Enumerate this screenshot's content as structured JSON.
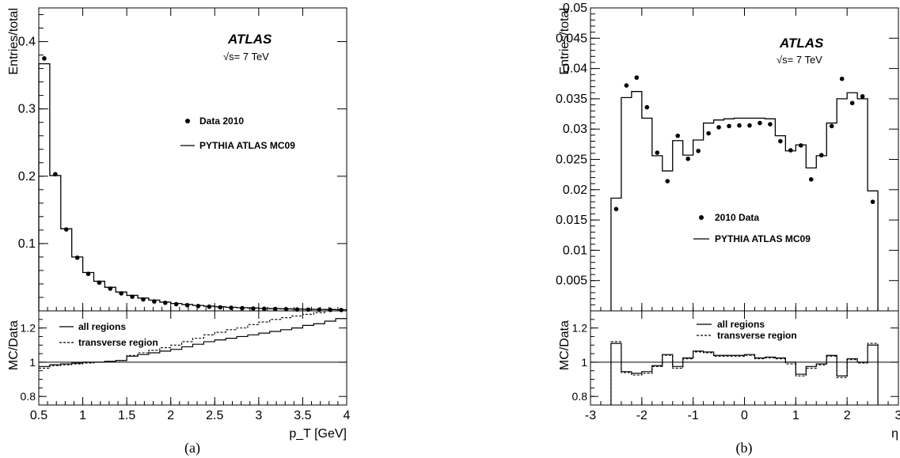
{
  "chart_data": [
    {
      "id": "a",
      "type": "line",
      "caption": "(a)",
      "atlas_label": "ATLAS",
      "energy_label": "√s= 7 TeV",
      "xlabel": "p_T [GeV]",
      "xlim": [
        0.5,
        4.0
      ],
      "x_ticks": [
        0.5,
        1,
        1.5,
        2,
        2.5,
        3,
        3.5,
        4
      ],
      "x_tick_labels": [
        "0.5",
        "1",
        "1.5",
        "2",
        "2.5",
        "3",
        "3.5",
        "4"
      ],
      "main": {
        "ylabel": "Entries/total",
        "ylim": [
          0,
          0.45
        ],
        "y_ticks": [
          0.1,
          0.2,
          0.3,
          0.4
        ],
        "y_tick_labels": [
          "0.1",
          "0.2",
          "0.3",
          "0.4"
        ],
        "legend_position": "center-right",
        "bin_edges": [
          0.5,
          0.625,
          0.75,
          0.875,
          1.0,
          1.125,
          1.25,
          1.375,
          1.5,
          1.625,
          1.75,
          1.875,
          2.0,
          2.125,
          2.25,
          2.375,
          2.5,
          2.625,
          2.75,
          2.875,
          3.0,
          3.125,
          3.25,
          3.375,
          3.5,
          3.625,
          3.75,
          3.875,
          4.0
        ],
        "series": [
          {
            "name": "Data 2010",
            "style": "points",
            "x": [
              0.5625,
              0.6875,
              0.8125,
              0.9375,
              1.0625,
              1.1875,
              1.3125,
              1.4375,
              1.5625,
              1.6875,
              1.8125,
              1.9375,
              2.0625,
              2.1875,
              2.3125,
              2.4375,
              2.5625,
              2.6875,
              2.8125,
              2.9375,
              3.0625,
              3.1875,
              3.3125,
              3.4375,
              3.5625,
              3.6875,
              3.8125,
              3.9375
            ],
            "y": [
              0.375,
              0.203,
              0.121,
              0.079,
              0.055,
              0.042,
              0.033,
              0.026,
              0.021,
              0.017,
              0.014,
              0.012,
              0.01,
              0.0085,
              0.0072,
              0.0062,
              0.0053,
              0.0046,
              0.004,
              0.0035,
              0.0031,
              0.0027,
              0.0024,
              0.0021,
              0.0019,
              0.0017,
              0.0015,
              0.0013
            ]
          },
          {
            "name": "PYTHIA ATLAS MC09",
            "style": "step",
            "values": [
              0.367,
              0.201,
              0.122,
              0.08,
              0.057,
              0.044,
              0.035,
              0.028,
              0.023,
              0.019,
              0.016,
              0.013,
              0.011,
              0.0095,
              0.0081,
              0.007,
              0.0061,
              0.0053,
              0.0047,
              0.0042,
              0.0037,
              0.0033,
              0.003,
              0.0027,
              0.0024,
              0.0022,
              0.002,
              0.0018
            ]
          }
        ]
      },
      "ratio": {
        "ylabel": "MC/Data",
        "ylim": [
          0.75,
          1.3
        ],
        "y_ticks": [
          0.8,
          1.0,
          1.2
        ],
        "y_tick_labels": [
          "0.8",
          "1",
          "1.2"
        ],
        "reference_line": 1.0,
        "legend_position": "top-left",
        "bin_edges": [
          0.5,
          0.625,
          0.75,
          0.875,
          1.0,
          1.125,
          1.25,
          1.375,
          1.5,
          1.625,
          1.75,
          1.875,
          2.0,
          2.125,
          2.25,
          2.375,
          2.5,
          2.625,
          2.75,
          2.875,
          3.0,
          3.125,
          3.25,
          3.375,
          3.5,
          3.625,
          3.75,
          3.875,
          4.0
        ],
        "series": [
          {
            "name": "all regions",
            "style": "solid-step",
            "values": [
              0.975,
              0.985,
              0.99,
              0.995,
              1.0,
              1.0,
              1.005,
              1.01,
              1.035,
              1.045,
              1.055,
              1.065,
              1.075,
              1.09,
              1.105,
              1.12,
              1.13,
              1.14,
              1.15,
              1.16,
              1.17,
              1.18,
              1.19,
              1.2,
              1.215,
              1.225,
              1.24,
              1.255
            ]
          },
          {
            "name": "transverse region",
            "style": "dashed-step",
            "values": [
              0.965,
              0.98,
              0.985,
              0.99,
              0.995,
              1.0,
              1.005,
              1.01,
              1.04,
              1.055,
              1.07,
              1.085,
              1.1,
              1.12,
              1.14,
              1.16,
              1.175,
              1.19,
              1.2,
              1.22,
              1.235,
              1.25,
              1.26,
              1.27,
              1.28,
              1.29,
              1.3,
              1.3
            ]
          }
        ]
      }
    },
    {
      "id": "b",
      "type": "line",
      "caption": "(b)",
      "atlas_label": "ATLAS",
      "energy_label": "√s= 7 TeV",
      "xlabel": "η",
      "xlim": [
        -3,
        3
      ],
      "x_ticks": [
        -3,
        -2,
        -1,
        0,
        1,
        2,
        3
      ],
      "x_tick_labels": [
        "-3",
        "-2",
        "-1",
        "0",
        "1",
        "2",
        "3"
      ],
      "main": {
        "ylabel": "Entries/total",
        "ylim": [
          0,
          0.05
        ],
        "y_ticks": [
          0.005,
          0.01,
          0.015,
          0.02,
          0.025,
          0.03,
          0.035,
          0.04,
          0.045,
          0.05
        ],
        "y_tick_labels": [
          "0.005",
          "0.01",
          "0.015",
          "0.02",
          "0.025",
          "0.03",
          "0.035",
          "0.04",
          "0.045",
          "0.05"
        ],
        "legend_position": "center",
        "bin_edges": [
          -2.6,
          -2.4,
          -2.2,
          -2.0,
          -1.8,
          -1.6,
          -1.4,
          -1.2,
          -1.0,
          -0.8,
          -0.6,
          -0.4,
          -0.2,
          0.0,
          0.2,
          0.4,
          0.6,
          0.8,
          1.0,
          1.2,
          1.4,
          1.6,
          1.8,
          2.0,
          2.2,
          2.4,
          2.6
        ],
        "series": [
          {
            "name": "2010 Data",
            "style": "points",
            "x": [
              -2.5,
              -2.3,
              -2.1,
              -1.9,
              -1.7,
              -1.5,
              -1.3,
              -1.1,
              -0.9,
              -0.7,
              -0.5,
              -0.3,
              -0.1,
              0.1,
              0.3,
              0.5,
              0.7,
              0.9,
              1.1,
              1.3,
              1.5,
              1.7,
              1.9,
              2.1,
              2.3,
              2.5
            ],
            "y": [
              0.0168,
              0.0372,
              0.0385,
              0.0336,
              0.0261,
              0.0214,
              0.0289,
              0.0251,
              0.0264,
              0.0293,
              0.0303,
              0.0305,
              0.0306,
              0.0306,
              0.031,
              0.0308,
              0.028,
              0.0265,
              0.0273,
              0.0217,
              0.0257,
              0.0305,
              0.0383,
              0.0343,
              0.0354,
              0.018
            ]
          },
          {
            "name": "PYTHIA ATLAS MC09",
            "style": "step",
            "values": [
              0.0186,
              0.0352,
              0.0362,
              0.0318,
              0.0256,
              0.0231,
              0.0281,
              0.0257,
              0.0282,
              0.031,
              0.0315,
              0.0317,
              0.0318,
              0.0318,
              0.0318,
              0.0317,
              0.0289,
              0.0264,
              0.0274,
              0.0236,
              0.0256,
              0.031,
              0.035,
              0.036,
              0.035,
              0.0198
            ]
          }
        ]
      },
      "ratio": {
        "ylabel": "MC/Data",
        "ylim": [
          0.75,
          1.3
        ],
        "y_ticks": [
          0.8,
          1.0,
          1.2
        ],
        "y_tick_labels": [
          "0.8",
          "1",
          "1.2"
        ],
        "reference_line": 1.0,
        "legend_position": "top-center",
        "bin_edges": [
          -2.6,
          -2.4,
          -2.2,
          -2.0,
          -1.8,
          -1.6,
          -1.4,
          -1.2,
          -1.0,
          -0.8,
          -0.6,
          -0.4,
          -0.2,
          0.0,
          0.2,
          0.4,
          0.6,
          0.8,
          1.0,
          1.2,
          1.4,
          1.6,
          1.8,
          2.0,
          2.2,
          2.4,
          2.6
        ],
        "series": [
          {
            "name": "all regions",
            "style": "solid-step",
            "values": [
              1.11,
              0.945,
              0.935,
              0.945,
              0.98,
              1.045,
              0.975,
              1.025,
              1.065,
              1.06,
              1.04,
              1.04,
              1.04,
              1.045,
              1.025,
              1.03,
              1.025,
              1.0,
              0.93,
              0.975,
              0.99,
              1.04,
              0.92,
              1.02,
              1.0,
              1.1
            ]
          },
          {
            "name": "transverse region",
            "style": "dashed-step",
            "values": [
              1.12,
              0.94,
              0.925,
              0.935,
              0.975,
              1.04,
              0.965,
              1.02,
              1.06,
              1.055,
              1.035,
              1.035,
              1.035,
              1.04,
              1.02,
              1.025,
              1.02,
              0.99,
              0.92,
              0.965,
              0.985,
              1.035,
              0.91,
              1.015,
              0.995,
              1.11
            ]
          }
        ]
      }
    }
  ]
}
